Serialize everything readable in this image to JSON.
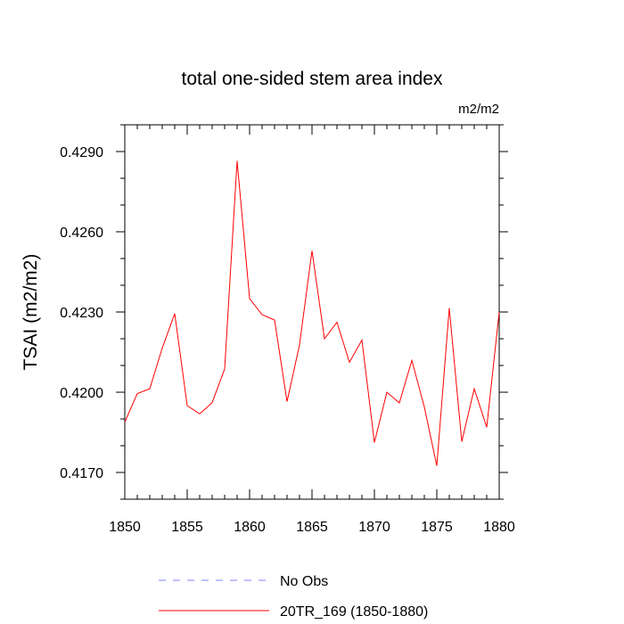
{
  "chart_data": {
    "type": "line",
    "title": "total one-sided stem area index",
    "units_label": "m2/m2",
    "ylabel": "TSAI  (m2/m2)",
    "xlabel": "",
    "xlim": [
      1850,
      1880
    ],
    "ylim": [
      0.416,
      0.43
    ],
    "x_ticks": [
      1850,
      1855,
      1860,
      1865,
      1870,
      1875,
      1880
    ],
    "y_ticks": [
      0.417,
      0.42,
      0.423,
      0.426,
      0.429
    ],
    "y_tick_labels": [
      "0.4170",
      "0.4200",
      "0.4230",
      "0.4260",
      "0.4290"
    ],
    "grid": false,
    "legend_position": "bottom",
    "series": [
      {
        "name": "No Obs",
        "color": "#8080ff",
        "dashed": true,
        "x": [],
        "values": []
      },
      {
        "name": "20TR_169 (1850-1880)",
        "color": "#ff0000",
        "dashed": false,
        "x": [
          1850,
          1851,
          1852,
          1853,
          1854,
          1855,
          1856,
          1857,
          1858,
          1859,
          1860,
          1861,
          1862,
          1863,
          1864,
          1865,
          1866,
          1867,
          1868,
          1869,
          1870,
          1871,
          1872,
          1873,
          1874,
          1875,
          1876,
          1877,
          1878,
          1879,
          1880
        ],
        "values": [
          0.41888,
          0.41995,
          0.42013,
          0.42165,
          0.42294,
          0.4195,
          0.41919,
          0.41961,
          0.42087,
          0.42865,
          0.4235,
          0.4229,
          0.4227,
          0.41965,
          0.42177,
          0.42529,
          0.422,
          0.42262,
          0.42112,
          0.42195,
          0.41812,
          0.42,
          0.4196,
          0.42119,
          0.41945,
          0.41725,
          0.42315,
          0.41815,
          0.42013,
          0.41869,
          0.423
        ]
      }
    ]
  }
}
